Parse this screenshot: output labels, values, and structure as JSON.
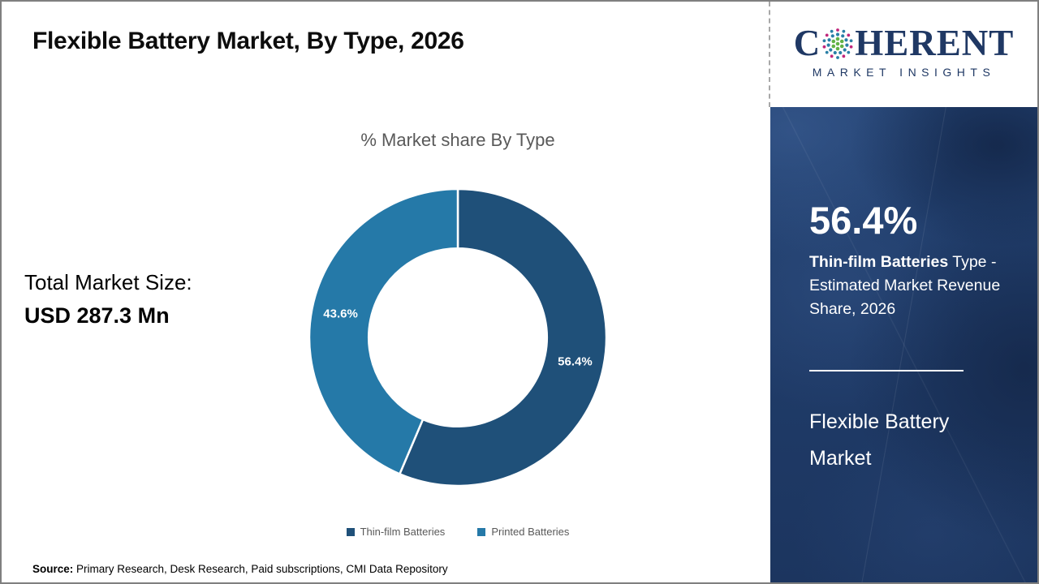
{
  "page": {
    "title": "Flexible Battery Market, By Type, 2026",
    "border_color": "#7F7F7F",
    "background": "#FFFFFF"
  },
  "logo": {
    "brand_prefix": "C",
    "brand_suffix": "HERENT",
    "tagline": "MARKET INSIGHTS",
    "text_color": "#1F3864",
    "globe_colors": {
      "outer": "#C0267B",
      "middle": "#2A7FA6",
      "inner": "#62B346"
    }
  },
  "summary": {
    "total_label": "Total Market Size:",
    "total_value": "USD 287.3 Mn"
  },
  "chart_data": {
    "type": "pie",
    "title": "% Market share By Type",
    "categories": [
      "Thin-film Batteries",
      "Printed Batteries"
    ],
    "values": [
      56.4,
      43.6
    ],
    "data_labels": [
      "56.4%",
      "43.6%"
    ],
    "colors": [
      "#1F5079",
      "#2579A8"
    ],
    "donut_hole_ratio": 0.6,
    "start_angle_deg": -90,
    "direction": "clockwise",
    "legend_position": "bottom",
    "label_color": "#FFFFFF"
  },
  "sidebar": {
    "background_color": "#1E3A64",
    "highlight_value": "56.4%",
    "highlight_bold": "Thin-film Batteries",
    "highlight_rest": " Type - Estimated Market Revenue Share, 2026",
    "panel_title": "Flexible Battery Market"
  },
  "footer": {
    "source_label": "Source:",
    "source_text": " Primary Research, Desk Research, Paid subscriptions, CMI Data Repository"
  }
}
